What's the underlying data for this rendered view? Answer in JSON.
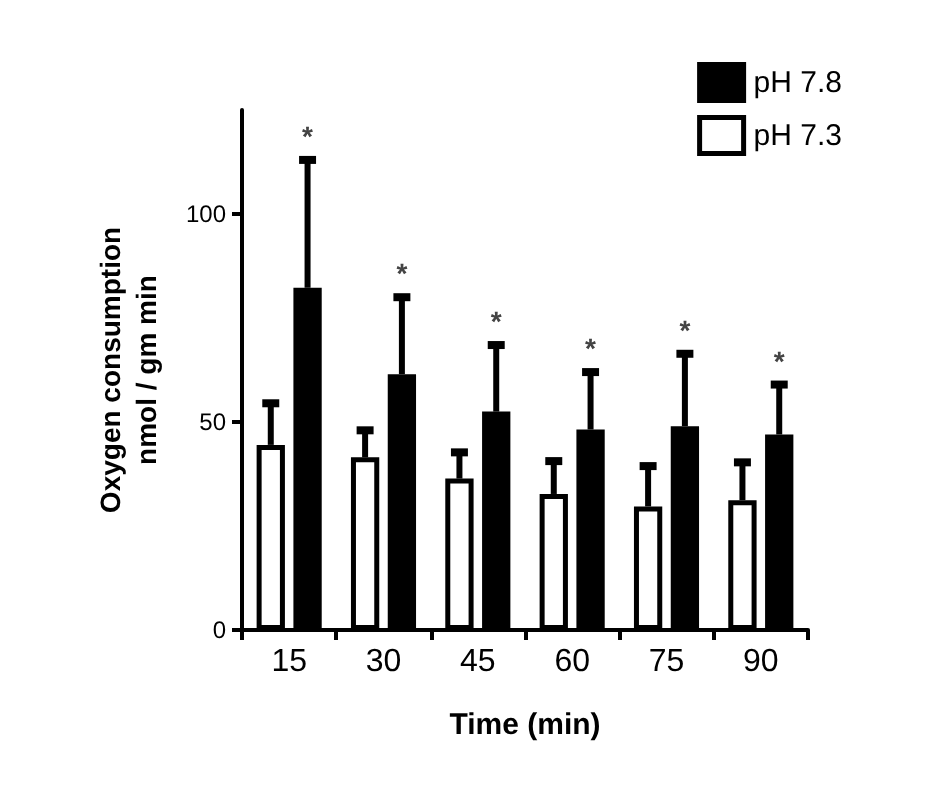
{
  "chart_data": {
    "type": "bar",
    "xlabel": "Time (min)",
    "ylabel": "Oxygen consumption\nnmol / gm min",
    "categories": [
      "15",
      "30",
      "45",
      "60",
      "75",
      "90"
    ],
    "series": [
      {
        "name": "pH 7.3",
        "color": "#ffffff",
        "values": [
          44.5,
          41.5,
          36.4,
          32.7,
          29.7,
          31.2
        ],
        "errors": [
          [
            44.5,
            54.5
          ],
          [
            41.5,
            48
          ],
          [
            36.4,
            42.7
          ],
          [
            32.7,
            40.6
          ],
          [
            29.7,
            39.4
          ],
          [
            31.2,
            40.3
          ]
        ]
      },
      {
        "name": "pH 7.8",
        "color": "#000000",
        "values": [
          82.3,
          61.5,
          52.5,
          48.2,
          49,
          47
        ],
        "errors": [
          [
            82.3,
            113
          ],
          [
            61.5,
            80
          ],
          [
            52.5,
            68.5
          ],
          [
            48.2,
            62
          ],
          [
            49,
            66.4
          ],
          [
            47,
            59
          ]
        ]
      }
    ],
    "annotations": [
      {
        "text": "*",
        "x": "15",
        "y": 113
      },
      {
        "text": "*",
        "x": "30",
        "y": 80
      },
      {
        "text": "*",
        "x": "45",
        "y": 68.5
      },
      {
        "text": "*",
        "x": "60",
        "y": 62
      },
      {
        "text": "*",
        "x": "75",
        "y": 66.4
      },
      {
        "text": "*",
        "x": "90",
        "y": 59
      }
    ],
    "ylim": [
      0,
      125
    ],
    "yticks": [
      0,
      50,
      100
    ],
    "legend": "top right",
    "grid": false
  }
}
